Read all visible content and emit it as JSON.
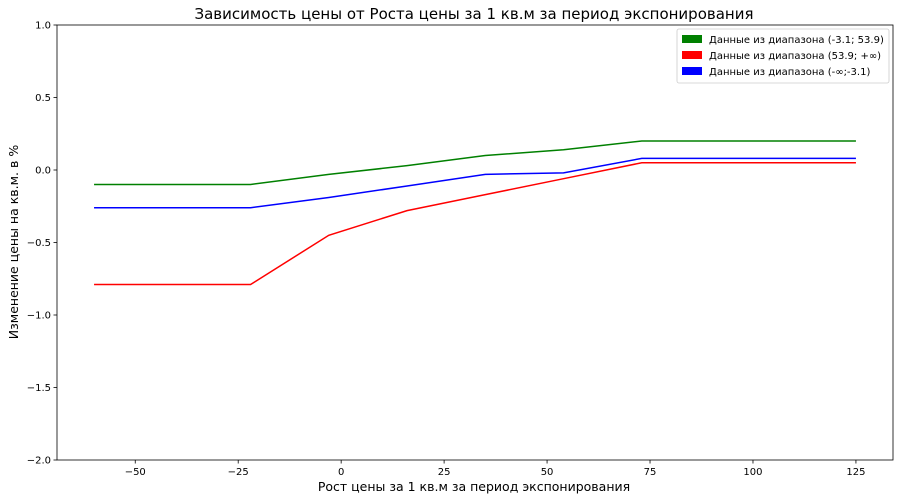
{
  "chart_data": {
    "type": "line",
    "title": "Зависимость цены от Роста цены за 1 кв.м за период экспонирования",
    "xlabel": "Рост цены за 1 кв.м за период экспонирования",
    "ylabel": "Изменение цены на кв.м. в %",
    "xlim": [
      -69,
      134
    ],
    "ylim": [
      -2.0,
      1.0
    ],
    "xticks": [
      -50,
      -25,
      0,
      25,
      50,
      75,
      100,
      125
    ],
    "yticks": [
      -2.0,
      -1.5,
      -1.0,
      -0.5,
      0.0,
      0.5,
      1.0
    ],
    "xtick_labels": [
      "−50",
      "−25",
      "0",
      "25",
      "50",
      "75",
      "100",
      "125"
    ],
    "ytick_labels": [
      "−2.0",
      "−1.5",
      "−1.0",
      "−0.5",
      "0.0",
      "0.5",
      "1.0"
    ],
    "grid": false,
    "legend_position": "top-right",
    "series": [
      {
        "name": "Данные из диапазона (-3.1; 53.9)",
        "color": "#008000",
        "x": [
          -60,
          -22,
          -3,
          16,
          35,
          54,
          73,
          125
        ],
        "y": [
          -0.1,
          -0.1,
          -0.03,
          0.03,
          0.1,
          0.14,
          0.2,
          0.2
        ]
      },
      {
        "name": "Данные из диапазона (53.9; +∞)",
        "color": "#ff0000",
        "x": [
          -60,
          -22,
          -3,
          16,
          35,
          54,
          73,
          125
        ],
        "y": [
          -0.79,
          -0.79,
          -0.45,
          -0.28,
          -0.17,
          -0.06,
          0.05,
          0.05
        ]
      },
      {
        "name": "Данные из диапазона (-∞;-3.1)",
        "color": "#0000ff",
        "x": [
          -60,
          -22,
          -3,
          16,
          35,
          54,
          73,
          125
        ],
        "y": [
          -0.26,
          -0.26,
          -0.19,
          -0.11,
          -0.03,
          -0.02,
          0.08,
          0.08
        ]
      }
    ]
  }
}
